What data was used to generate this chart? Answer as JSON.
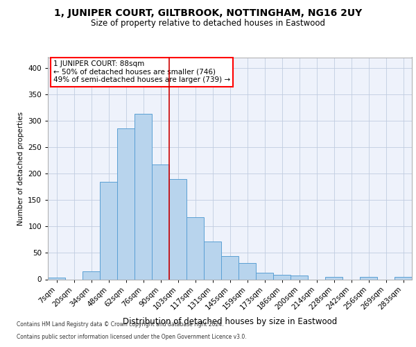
{
  "title_line1": "1, JUNIPER COURT, GILTBROOK, NOTTINGHAM, NG16 2UY",
  "title_line2": "Size of property relative to detached houses in Eastwood",
  "xlabel": "Distribution of detached houses by size in Eastwood",
  "ylabel": "Number of detached properties",
  "bar_labels": [
    "7sqm",
    "20sqm",
    "34sqm",
    "48sqm",
    "62sqm",
    "76sqm",
    "90sqm",
    "103sqm",
    "117sqm",
    "131sqm",
    "145sqm",
    "159sqm",
    "173sqm",
    "186sqm",
    "200sqm",
    "214sqm",
    "228sqm",
    "242sqm",
    "256sqm",
    "269sqm",
    "283sqm"
  ],
  "bar_values": [
    3,
    0,
    15,
    185,
    285,
    313,
    217,
    190,
    118,
    72,
    44,
    31,
    12,
    8,
    7,
    0,
    5,
    0,
    5,
    0,
    4
  ],
  "bar_color": "#b8d4ed",
  "bar_edge_color": "#5a9fd4",
  "annotation_text": "1 JUNIPER COURT: 88sqm\n← 50% of detached houses are smaller (746)\n49% of semi-detached houses are larger (739) →",
  "property_bar_index": 6,
  "property_line_color": "#cc0000",
  "bg_color": "#eef2fb",
  "footnote1": "Contains HM Land Registry data © Crown copyright and database right 2024.",
  "footnote2": "Contains public sector information licensed under the Open Government Licence v3.0.",
  "ylim": [
    0,
    420
  ],
  "yticks": [
    0,
    50,
    100,
    150,
    200,
    250,
    300,
    350,
    400
  ],
  "grid_color": "#c0cce0"
}
